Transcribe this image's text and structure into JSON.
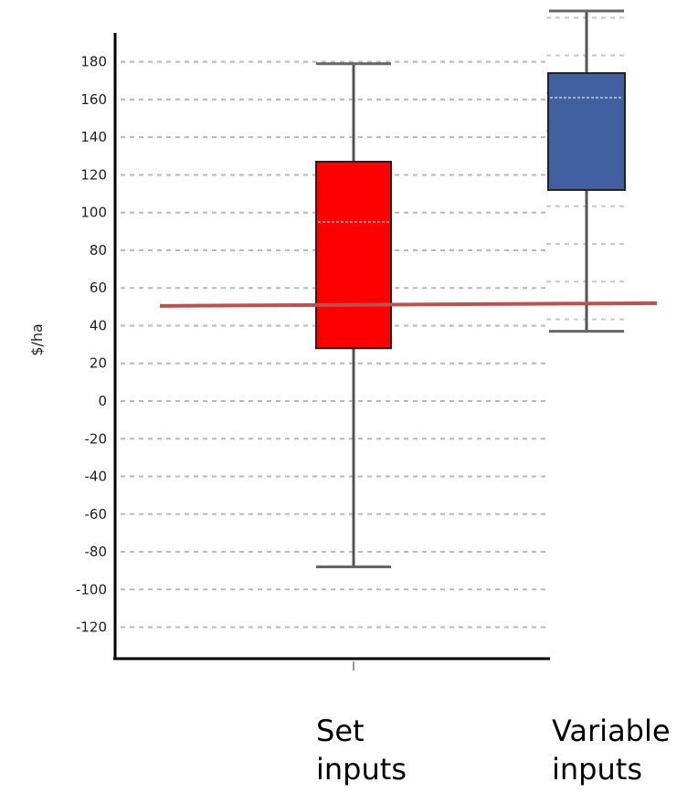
{
  "chart_data": {
    "type": "box",
    "ylabel": "$/ha",
    "yticks": [
      180,
      160,
      140,
      120,
      100,
      80,
      60,
      40,
      20,
      0,
      -20,
      -40,
      -60,
      -80,
      -100,
      -120
    ],
    "ylim": [
      -135,
      208
    ],
    "grid": true,
    "categories": [
      "Set inputs",
      "Variable inputs"
    ],
    "series": [
      {
        "category": "Set inputs",
        "min": -88,
        "q1": 28,
        "median": 95,
        "q3": 127,
        "max": 179,
        "color": "#ff0000"
      },
      {
        "category": "Variable inputs",
        "min": 37,
        "q1": 112,
        "median": 161,
        "q3": 174,
        "max": 207,
        "color": "#4060a0"
      }
    ],
    "reference_line": {
      "value": 50,
      "color": "#c0504d"
    }
  },
  "labels": {
    "cat0_line1": "Set",
    "cat0_line2": "inputs",
    "cat1_line1": "Variable",
    "cat1_line2": "inputs"
  }
}
